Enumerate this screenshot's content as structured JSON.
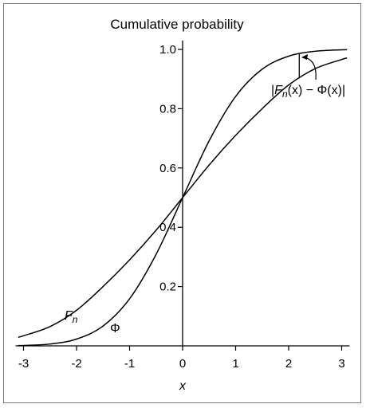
{
  "chart_data": {
    "type": "line",
    "title": "Cumulative probability",
    "xlabel": "x",
    "ylabel": "",
    "xlim": [
      -3.15,
      3.15
    ],
    "ylim": [
      0,
      1.03
    ],
    "x_ticks": [
      -3,
      -2,
      -1,
      0,
      1,
      2,
      3
    ],
    "x_tick_labels": [
      "-3",
      "-2",
      "-1",
      "0",
      "1",
      "2",
      "3"
    ],
    "y_ticks": [
      0.2,
      0.4,
      0.6,
      0.8,
      1.0
    ],
    "y_tick_labels": [
      "0.2",
      "0.4",
      "0.6",
      "0.8",
      "1.0"
    ],
    "grid": false,
    "series": [
      {
        "name": "F_n",
        "x": [
          -3.1,
          -3.0,
          -2.5,
          -2.0,
          -1.5,
          -1.0,
          -0.5,
          0.0,
          0.5,
          1.0,
          1.5,
          2.0,
          2.5,
          3.0,
          3.1
        ],
        "values": [
          0.029,
          0.034,
          0.065,
          0.12,
          0.2,
          0.29,
          0.39,
          0.5,
          0.61,
          0.71,
          0.8,
          0.88,
          0.935,
          0.966,
          0.971
        ]
      },
      {
        "name": "Φ",
        "x": [
          -3.1,
          -3.0,
          -2.5,
          -2.0,
          -1.5,
          -1.0,
          -0.5,
          0.0,
          0.5,
          1.0,
          1.5,
          2.0,
          2.5,
          3.0,
          3.1
        ],
        "values": [
          0.001,
          0.0013,
          0.0062,
          0.0228,
          0.0668,
          0.1587,
          0.3085,
          0.5,
          0.6915,
          0.8413,
          0.9332,
          0.9772,
          0.9938,
          0.9987,
          0.999
        ]
      }
    ],
    "annotations": [
      {
        "text": "|F_n(x) − Φ(x)|",
        "marker_x": 2.2
      }
    ]
  },
  "labels": {
    "title": "Cumulative probability",
    "xlabel": "x",
    "fn_main": "F",
    "fn_sub": "n",
    "phi": "Φ",
    "annot_bar_left": "|",
    "annot_F": "F",
    "annot_sub": "n",
    "annot_x1": "(x) − Φ(x)",
    "annot_bar_right": "|"
  },
  "colors": {
    "line": "#000000",
    "frame": "#7a7a7a"
  }
}
